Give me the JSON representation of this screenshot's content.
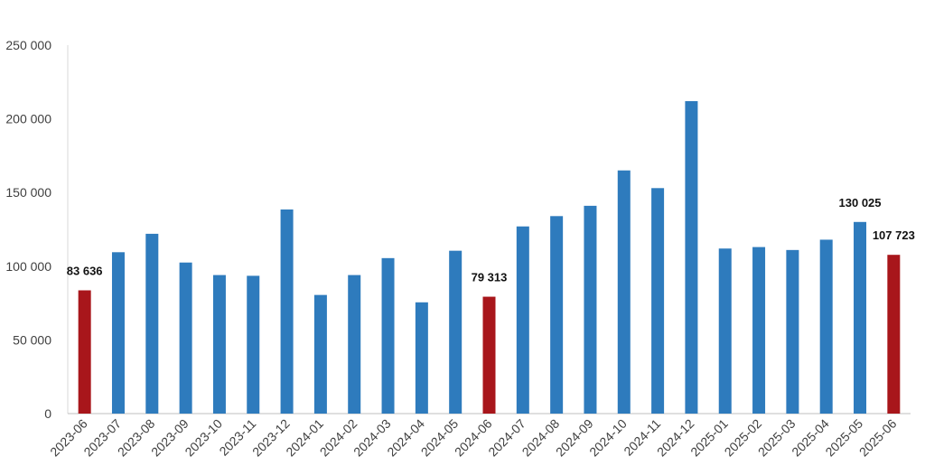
{
  "chart_data": {
    "type": "bar",
    "title": "",
    "xlabel": "",
    "ylabel": "",
    "ylim": [
      0,
      250000
    ],
    "y_ticks": [
      0,
      50000,
      100000,
      150000,
      200000,
      250000
    ],
    "y_tick_labels": [
      "0",
      "50 000",
      "100 000",
      "150 000",
      "200 000",
      "250 000"
    ],
    "grid": false,
    "categories": [
      "2023-06",
      "2023-07",
      "2023-08",
      "2023-09",
      "2023-10",
      "2023-11",
      "2023-12",
      "2024-01",
      "2024-02",
      "2024-03",
      "2024-04",
      "2024-05",
      "2024-06",
      "2024-07",
      "2024-08",
      "2024-09",
      "2024-10",
      "2024-11",
      "2024-12",
      "2025-01",
      "2025-02",
      "2025-03",
      "2025-04",
      "2025-05",
      "2025-06"
    ],
    "values": [
      83636,
      109500,
      122000,
      102500,
      94000,
      93500,
      138500,
      80500,
      94000,
      105500,
      75500,
      110500,
      79313,
      127000,
      134000,
      141000,
      165000,
      153000,
      212000,
      112000,
      113000,
      111000,
      118000,
      130025,
      107723
    ],
    "highlight_color": "#a8161b",
    "bar_color": "#2e7bbd",
    "highlighted": [
      "2023-06",
      "2024-06",
      "2025-06"
    ],
    "data_labels": [
      {
        "category": "2023-06",
        "text": "83 636"
      },
      {
        "category": "2024-06",
        "text": "79 313"
      },
      {
        "category": "2025-05",
        "text": "130 025"
      },
      {
        "category": "2025-06",
        "text": "107 723"
      }
    ]
  }
}
